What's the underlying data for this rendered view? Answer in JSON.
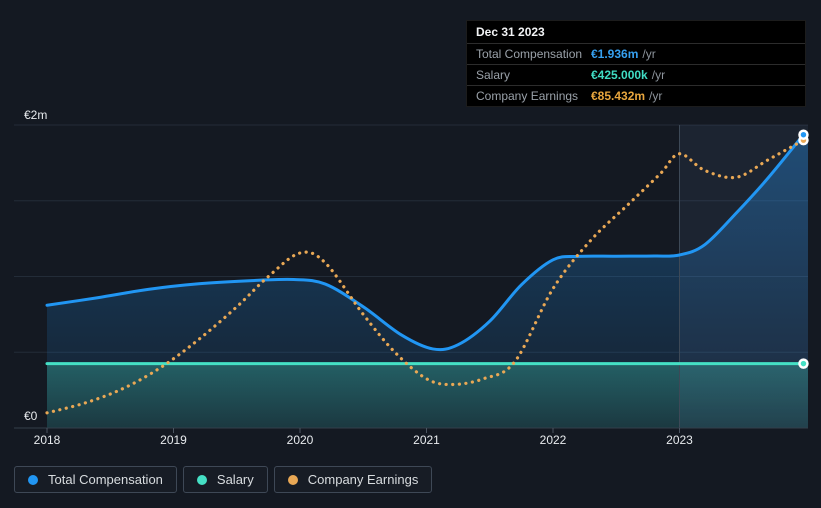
{
  "tooltip": {
    "date": "Dec 31 2023",
    "rows": [
      {
        "label": "Total Compensation",
        "value": "€1.936m",
        "suffix": "/yr",
        "color": "#36a0f0"
      },
      {
        "label": "Salary",
        "value": "€425.000k",
        "suffix": "/yr",
        "color": "#40dcc4"
      },
      {
        "label": "Company Earnings",
        "value": "€85.432m",
        "suffix": "/yr",
        "color": "#e8a63e"
      }
    ]
  },
  "legend": [
    {
      "label": "Total Compensation",
      "color": "#2196f3"
    },
    {
      "label": "Salary",
      "color": "#45e0c5"
    },
    {
      "label": "Company Earnings",
      "color": "#e9a855"
    }
  ],
  "chart_data": {
    "type": "line",
    "x_axis": {
      "tick_labels": [
        "2018",
        "2019",
        "2020",
        "2021",
        "2022",
        "2023"
      ],
      "tick_years": [
        2018,
        2019,
        2020,
        2021,
        2022,
        2023
      ],
      "min": 2018,
      "max": 2024.05
    },
    "y_axis": {
      "top_label": "€2m",
      "bottom_label": "€0",
      "min": 0,
      "max": 2,
      "unit": "€m /yr",
      "gridline_values": [
        0,
        0.5,
        1,
        1.5,
        2
      ]
    },
    "highlight_from_year": 2023,
    "series": [
      {
        "name": "Total Compensation",
        "color": "#2196f3",
        "line_style": "solid",
        "area_fill": true,
        "end_value_label": "€1.936m /yr",
        "points": [
          [
            2018,
            0.81
          ],
          [
            2018.4,
            0.86
          ],
          [
            2018.8,
            0.915
          ],
          [
            2019.2,
            0.952
          ],
          [
            2019.6,
            0.972
          ],
          [
            2019.95,
            0.98
          ],
          [
            2020.2,
            0.95
          ],
          [
            2020.5,
            0.8
          ],
          [
            2020.8,
            0.615
          ],
          [
            2021.05,
            0.522
          ],
          [
            2021.25,
            0.55
          ],
          [
            2021.5,
            0.705
          ],
          [
            2021.75,
            0.945
          ],
          [
            2022,
            1.11
          ],
          [
            2022.2,
            1.133
          ],
          [
            2022.5,
            1.134
          ],
          [
            2022.8,
            1.135
          ],
          [
            2023,
            1.142
          ],
          [
            2023.2,
            1.21
          ],
          [
            2023.45,
            1.42
          ],
          [
            2023.7,
            1.65
          ],
          [
            2023.98,
            1.936
          ]
        ]
      },
      {
        "name": "Salary",
        "color": "#45e0c5",
        "line_style": "solid",
        "area_fill": true,
        "end_value_label": "€425.000k /yr",
        "points": [
          [
            2018,
            0.425
          ],
          [
            2023.98,
            0.425
          ]
        ]
      },
      {
        "name": "Company Earnings",
        "color": "#e9a855",
        "line_style": "dotted",
        "area_fill": false,
        "end_value_label": "€85.432m /yr",
        "scale_note": "plotted on its own hidden scale",
        "points": [
          [
            2018,
            0.1
          ],
          [
            2018.3,
            0.165
          ],
          [
            2018.6,
            0.26
          ],
          [
            2018.9,
            0.4
          ],
          [
            2019.2,
            0.585
          ],
          [
            2019.5,
            0.8
          ],
          [
            2019.75,
            1.0
          ],
          [
            2020,
            1.155
          ],
          [
            2020.2,
            1.09
          ],
          [
            2020.5,
            0.75
          ],
          [
            2020.75,
            0.5
          ],
          [
            2021,
            0.325
          ],
          [
            2021.2,
            0.287
          ],
          [
            2021.45,
            0.325
          ],
          [
            2021.7,
            0.44
          ],
          [
            2022,
            0.92
          ],
          [
            2022.3,
            1.24
          ],
          [
            2022.6,
            1.48
          ],
          [
            2022.85,
            1.68
          ],
          [
            2023,
            1.81
          ],
          [
            2023.2,
            1.7
          ],
          [
            2023.45,
            1.655
          ],
          [
            2023.7,
            1.77
          ],
          [
            2023.98,
            1.9
          ]
        ]
      }
    ]
  },
  "colors": {
    "background": "#141922",
    "gridline": "#232c38",
    "axis_line": "#333e4b",
    "tick": "#4a5460",
    "axis_text": "#e8ebee",
    "band_line": "#3d4957",
    "band_fill": "rgba(125,165,225,0.08)"
  }
}
